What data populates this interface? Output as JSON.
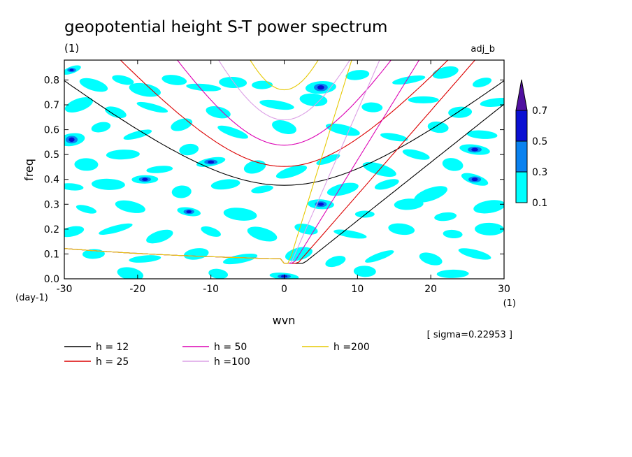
{
  "chart_data": {
    "type": "heatmap",
    "title": "geopotential height S-T power spectrum",
    "subtitle_left": "(1)",
    "subtitle_right": "adj_b",
    "xlabel": "wvn",
    "ylabel": "freq",
    "x_unit": "(1)",
    "y_unit": "(day-1)",
    "xlim": [
      -30,
      30
    ],
    "ylim": [
      0,
      0.88
    ],
    "x_ticks": [
      "-30",
      "-20",
      "-10",
      "0",
      "10",
      "20",
      "30"
    ],
    "x_tick_values": [
      -30,
      -20,
      -10,
      0,
      10,
      20,
      30
    ],
    "y_ticks": [
      "0.0",
      "0.1",
      "0.2",
      "0.3",
      "0.4",
      "0.5",
      "0.6",
      "0.7",
      "0.8"
    ],
    "y_tick_values": [
      0,
      0.1,
      0.2,
      0.3,
      0.4,
      0.5,
      0.6,
      0.7,
      0.8
    ],
    "sigma_note": "[ sigma=0.22953 ]",
    "colorbar": {
      "levels": [
        "0.1",
        "0.3",
        "0.5",
        "0.7"
      ],
      "colors": [
        "#00ffff",
        "#0a82f0",
        "#0a10d2",
        "#5010a0"
      ]
    },
    "dispersion_curves": [
      {
        "label": "h = 12",
        "h": 12,
        "color": "#000000"
      },
      {
        "label": "h = 25",
        "h": 25,
        "color": "#dc0000"
      },
      {
        "label": "h = 50",
        "h": 50,
        "color": "#dc00b4"
      },
      {
        "label": "h =100",
        "h": 100,
        "color": "#dca0e6"
      },
      {
        "label": "h =200",
        "h": 200,
        "color": "#e6c800"
      }
    ],
    "spectral_blobs": [
      {
        "x": -29,
        "y": 0.84,
        "level": 2
      },
      {
        "x": -26,
        "y": 0.78,
        "level": 1
      },
      {
        "x": -22,
        "y": 0.8,
        "level": 1
      },
      {
        "x": -19,
        "y": 0.76,
        "level": 1
      },
      {
        "x": -15,
        "y": 0.8,
        "level": 1
      },
      {
        "x": -11,
        "y": 0.77,
        "level": 1
      },
      {
        "x": -7,
        "y": 0.79,
        "level": 1
      },
      {
        "x": -3,
        "y": 0.78,
        "level": 1
      },
      {
        "x": 5,
        "y": 0.77,
        "level": 2
      },
      {
        "x": 10,
        "y": 0.82,
        "level": 1
      },
      {
        "x": 17,
        "y": 0.8,
        "level": 1
      },
      {
        "x": 22,
        "y": 0.83,
        "level": 1
      },
      {
        "x": 27,
        "y": 0.79,
        "level": 1
      },
      {
        "x": -28,
        "y": 0.7,
        "level": 1
      },
      {
        "x": -23,
        "y": 0.67,
        "level": 1
      },
      {
        "x": -18,
        "y": 0.69,
        "level": 1
      },
      {
        "x": -9,
        "y": 0.67,
        "level": 1
      },
      {
        "x": -1,
        "y": 0.7,
        "level": 1
      },
      {
        "x": 4,
        "y": 0.72,
        "level": 1
      },
      {
        "x": 12,
        "y": 0.69,
        "level": 1
      },
      {
        "x": 19,
        "y": 0.72,
        "level": 1
      },
      {
        "x": 24,
        "y": 0.67,
        "level": 1
      },
      {
        "x": 29,
        "y": 0.71,
        "level": 1
      },
      {
        "x": -29,
        "y": 0.56,
        "level": 2
      },
      {
        "x": -25,
        "y": 0.61,
        "level": 1
      },
      {
        "x": -20,
        "y": 0.58,
        "level": 1
      },
      {
        "x": -14,
        "y": 0.62,
        "level": 1
      },
      {
        "x": -7,
        "y": 0.59,
        "level": 1
      },
      {
        "x": 0,
        "y": 0.61,
        "level": 1
      },
      {
        "x": 8,
        "y": 0.6,
        "level": 1
      },
      {
        "x": 15,
        "y": 0.57,
        "level": 1
      },
      {
        "x": 21,
        "y": 0.61,
        "level": 1
      },
      {
        "x": 27,
        "y": 0.58,
        "level": 1
      },
      {
        "x": -27,
        "y": 0.46,
        "level": 1
      },
      {
        "x": -22,
        "y": 0.5,
        "level": 1
      },
      {
        "x": -17,
        "y": 0.44,
        "level": 1
      },
      {
        "x": -13,
        "y": 0.52,
        "level": 1
      },
      {
        "x": -10,
        "y": 0.47,
        "level": 2
      },
      {
        "x": -4,
        "y": 0.45,
        "level": 1
      },
      {
        "x": 1,
        "y": 0.43,
        "level": 1
      },
      {
        "x": 6,
        "y": 0.48,
        "level": 1
      },
      {
        "x": 13,
        "y": 0.44,
        "level": 1
      },
      {
        "x": 18,
        "y": 0.5,
        "level": 1
      },
      {
        "x": 23,
        "y": 0.46,
        "level": 1
      },
      {
        "x": 26,
        "y": 0.52,
        "level": 2
      },
      {
        "x": -29,
        "y": 0.37,
        "level": 1
      },
      {
        "x": -24,
        "y": 0.38,
        "level": 1
      },
      {
        "x": -19,
        "y": 0.4,
        "level": 2
      },
      {
        "x": -14,
        "y": 0.35,
        "level": 1
      },
      {
        "x": -8,
        "y": 0.38,
        "level": 1
      },
      {
        "x": -3,
        "y": 0.36,
        "level": 1
      },
      {
        "x": 8,
        "y": 0.36,
        "level": 1
      },
      {
        "x": 14,
        "y": 0.38,
        "level": 1
      },
      {
        "x": 20,
        "y": 0.34,
        "level": 1
      },
      {
        "x": 26,
        "y": 0.4,
        "level": 2
      },
      {
        "x": -27,
        "y": 0.28,
        "level": 1
      },
      {
        "x": -21,
        "y": 0.29,
        "level": 1
      },
      {
        "x": -13,
        "y": 0.27,
        "level": 2
      },
      {
        "x": -6,
        "y": 0.26,
        "level": 1
      },
      {
        "x": 5,
        "y": 0.3,
        "level": 2
      },
      {
        "x": 11,
        "y": 0.26,
        "level": 1
      },
      {
        "x": 17,
        "y": 0.3,
        "level": 1
      },
      {
        "x": 22,
        "y": 0.25,
        "level": 1
      },
      {
        "x": 28,
        "y": 0.29,
        "level": 1
      },
      {
        "x": -29,
        "y": 0.19,
        "level": 1
      },
      {
        "x": -23,
        "y": 0.2,
        "level": 1
      },
      {
        "x": -17,
        "y": 0.17,
        "level": 1
      },
      {
        "x": -10,
        "y": 0.19,
        "level": 1
      },
      {
        "x": -3,
        "y": 0.18,
        "level": 1
      },
      {
        "x": 3,
        "y": 0.2,
        "level": 1
      },
      {
        "x": 9,
        "y": 0.18,
        "level": 1
      },
      {
        "x": 16,
        "y": 0.2,
        "level": 1
      },
      {
        "x": 23,
        "y": 0.18,
        "level": 1
      },
      {
        "x": 28,
        "y": 0.2,
        "level": 1
      },
      {
        "x": -26,
        "y": 0.1,
        "level": 1
      },
      {
        "x": -19,
        "y": 0.08,
        "level": 1
      },
      {
        "x": -12,
        "y": 0.1,
        "level": 1
      },
      {
        "x": -6,
        "y": 0.08,
        "level": 1
      },
      {
        "x": 2,
        "y": 0.1,
        "level": 1
      },
      {
        "x": 7,
        "y": 0.07,
        "level": 1
      },
      {
        "x": 13,
        "y": 0.09,
        "level": 1
      },
      {
        "x": 20,
        "y": 0.08,
        "level": 1
      },
      {
        "x": 26,
        "y": 0.1,
        "level": 1
      },
      {
        "x": -21,
        "y": 0.02,
        "level": 1
      },
      {
        "x": -9,
        "y": 0.02,
        "level": 1
      },
      {
        "x": 0,
        "y": 0.01,
        "level": 2
      },
      {
        "x": 11,
        "y": 0.03,
        "level": 1
      },
      {
        "x": 23,
        "y": 0.02,
        "level": 1
      }
    ]
  }
}
